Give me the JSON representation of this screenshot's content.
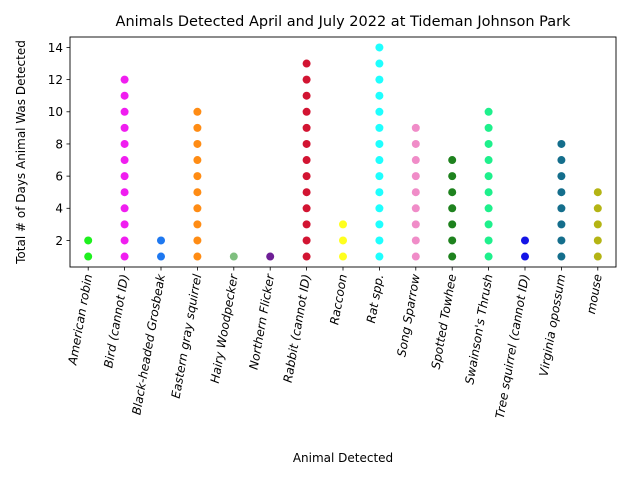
{
  "chart_data": {
    "type": "scatter",
    "title": "Animals Detected April and July 2022 at Tideman Johnson Park",
    "xlabel": "Animal Detected",
    "ylabel": "Total # of Days Animal Was Detected",
    "ylim": [
      0.35,
      14.65
    ],
    "yticks": [
      2,
      4,
      6,
      8,
      10,
      12,
      14
    ],
    "grid": false,
    "legend": "none",
    "categories": [
      "American robin",
      "Bird (cannot ID)",
      "Black-headed Grosbeak",
      "Eastern gray squirrel",
      "Hairy Woodpecker",
      "Northern Flicker",
      "Rabbit (cannot ID)",
      "Raccoon",
      "Rat spp.",
      "Song Sparrow",
      "Spotted Towhee",
      "Swainson's Thrush",
      "Tree squirrel (cannot ID)",
      "Virginia opossum",
      "mouse"
    ],
    "series": [
      {
        "category": "American robin",
        "color": "#1ef01e",
        "values": [
          1,
          2
        ]
      },
      {
        "category": "Bird (cannot ID)",
        "color": "#f01ef0",
        "values": [
          1,
          2,
          3,
          4,
          5,
          6,
          7,
          8,
          9,
          10,
          11,
          12
        ]
      },
      {
        "category": "Black-headed Grosbeak",
        "color": "#1e78f0",
        "values": [
          1,
          2
        ]
      },
      {
        "category": "Eastern gray squirrel",
        "color": "#ff8c14",
        "values": [
          1,
          2,
          3,
          4,
          5,
          6,
          7,
          8,
          9,
          10
        ]
      },
      {
        "category": "Hairy Woodpecker",
        "color": "#7fbf7f",
        "values": [
          1
        ]
      },
      {
        "category": "Northern Flicker",
        "color": "#6e1e96",
        "values": [
          1
        ]
      },
      {
        "category": "Rabbit (cannot ID)",
        "color": "#d21432",
        "values": [
          1,
          2,
          3,
          4,
          5,
          6,
          7,
          8,
          9,
          10,
          11,
          12,
          13
        ]
      },
      {
        "category": "Raccoon",
        "color": "#ffff1e",
        "values": [
          1,
          2,
          3
        ]
      },
      {
        "category": "Rat spp.",
        "color": "#1effff",
        "values": [
          1,
          2,
          3,
          4,
          5,
          6,
          7,
          8,
          9,
          10,
          11,
          12,
          13,
          14
        ]
      },
      {
        "category": "Song Sparrow",
        "color": "#f08cc8",
        "values": [
          1,
          2,
          3,
          4,
          5,
          6,
          7,
          8,
          9
        ]
      },
      {
        "category": "Spotted Towhee",
        "color": "#1e821e",
        "values": [
          1,
          2,
          3,
          4,
          5,
          6,
          7
        ]
      },
      {
        "category": "Swainson's Thrush",
        "color": "#1ef08c",
        "values": [
          1,
          2,
          3,
          4,
          5,
          6,
          7,
          8,
          9,
          10
        ]
      },
      {
        "category": "Tree squirrel (cannot ID)",
        "color": "#1414e6",
        "values": [
          1,
          2
        ]
      },
      {
        "category": "Virginia opossum",
        "color": "#146e8c",
        "values": [
          1,
          2,
          3,
          4,
          5,
          6,
          7,
          8
        ]
      },
      {
        "category": "mouse",
        "color": "#b4b414",
        "values": [
          1,
          2,
          3,
          4,
          5
        ]
      }
    ]
  }
}
